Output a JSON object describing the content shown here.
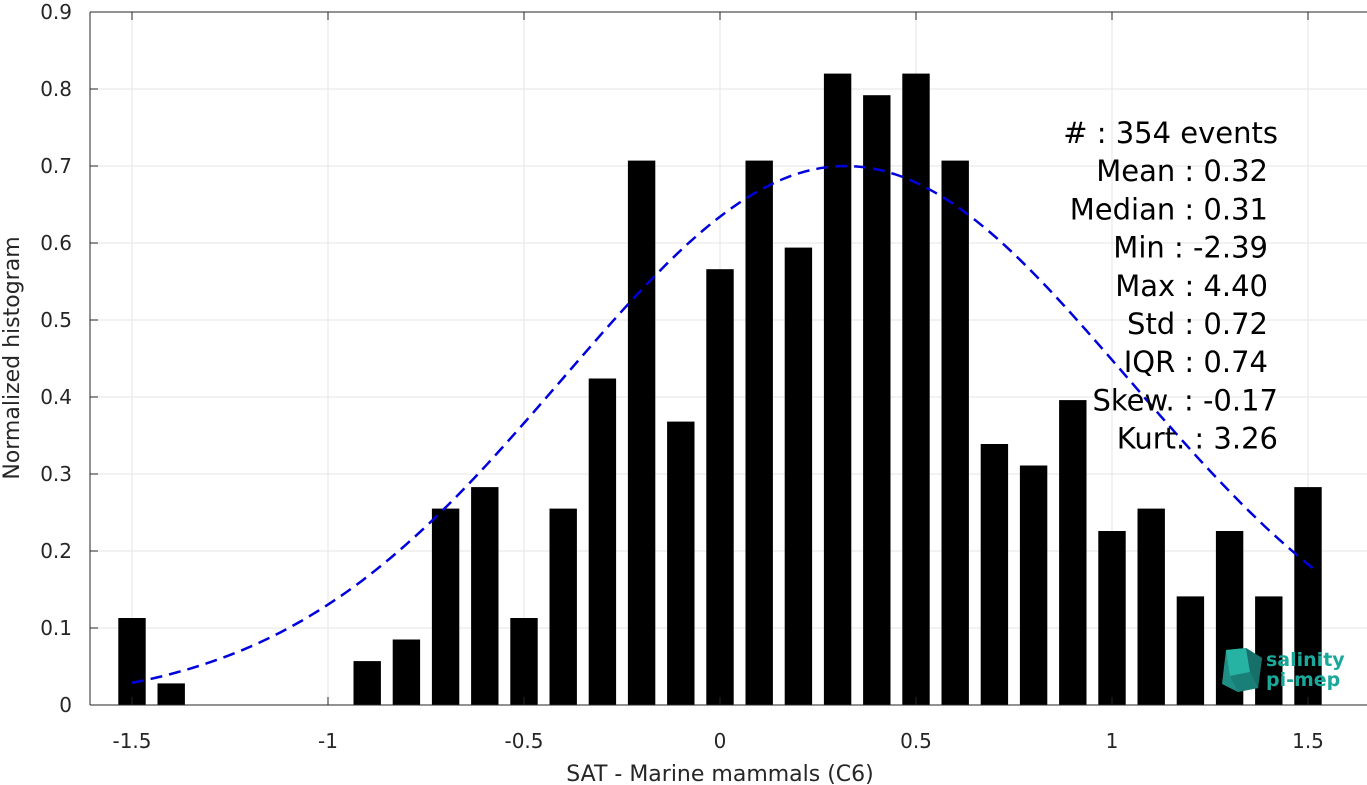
{
  "chart_data": {
    "type": "bar",
    "xlabel": "SAT - Marine mammals (C6)",
    "ylabel": "Normalized histogram",
    "xlim": [
      -1.65,
      1.65
    ],
    "ylim": [
      0,
      0.9
    ],
    "xticks": [
      -1.5,
      -1,
      -0.5,
      0,
      0.5,
      1,
      1.5
    ],
    "xtick_labels": [
      "-1.5",
      "-1",
      "-0.5",
      "0",
      "0.5",
      "1",
      "1.5"
    ],
    "yticks": [
      0,
      0.1,
      0.2,
      0.3,
      0.4,
      0.5,
      0.6,
      0.7,
      0.8,
      0.9
    ],
    "ytick_labels": [
      "0",
      "0.1",
      "0.2",
      "0.3",
      "0.4",
      "0.5",
      "0.6",
      "0.7",
      "0.8",
      "0.9"
    ],
    "grid": true,
    "bar_color": "#000000",
    "bar_width": 0.07,
    "bars": {
      "x": [
        -1.5,
        -1.4,
        -1.3,
        -1.2,
        -1.1,
        -1.0,
        -0.9,
        -0.8,
        -0.7,
        -0.6,
        -0.5,
        -0.4,
        -0.3,
        -0.2,
        -0.1,
        0.0,
        0.1,
        0.2,
        0.3,
        0.4,
        0.5,
        0.6,
        0.7,
        0.8,
        0.9,
        1.0,
        1.1,
        1.2,
        1.3,
        1.4,
        1.5
      ],
      "y": [
        0.113,
        0.028,
        0,
        0,
        0,
        0,
        0.057,
        0.085,
        0.255,
        0.283,
        0.113,
        0.255,
        0.424,
        0.707,
        0.368,
        0.566,
        0.707,
        0.594,
        0.82,
        0.792,
        0.82,
        0.707,
        0.339,
        0.311,
        0.396,
        0.226,
        0.255,
        0.141,
        0.226,
        0.141,
        0.283
      ]
    },
    "fit_curve": {
      "type": "normal",
      "mean": 0.32,
      "std": 0.72,
      "peak": 0.7,
      "x_range": [
        -1.5,
        1.52
      ],
      "color": "#0000dd",
      "style": "dashed"
    },
    "annotation": {
      "lines": [
        "#  : 354 events",
        "Mean : 0.32",
        "Median : 0.31",
        "Min : -2.39",
        "Max : 4.40",
        "Std : 0.72",
        "IQR : 0.74",
        "Skew. : -0.17",
        "Kurt. : 3.26"
      ]
    },
    "logo": {
      "line1": "salinity",
      "line2": "pi-mep",
      "color": "#1aa89a"
    }
  }
}
